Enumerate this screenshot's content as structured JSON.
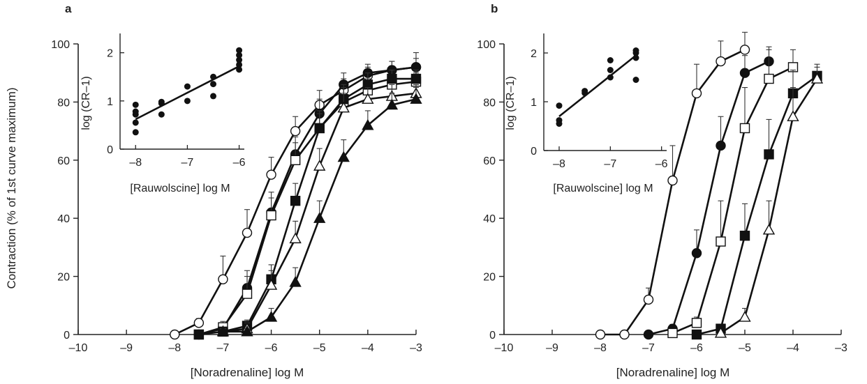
{
  "figure": {
    "y_label": "Contraction (% of 1st curve maximum)"
  },
  "chart_data": [
    {
      "panel_label": "a",
      "type": "line",
      "xlabel": "[Noradrenaline] log M",
      "xlim": [
        -10,
        -3
      ],
      "ylim": [
        0,
        100
      ],
      "x_ticks": [
        "–10",
        "–9",
        "–8",
        "–7",
        "–6",
        "–5",
        "–4",
        "–3"
      ],
      "y_ticks": [
        "0",
        "20",
        "40",
        "60",
        "80",
        "100"
      ],
      "series": [
        {
          "marker": "open-circle",
          "x": [
            -8,
            -7.5,
            -7,
            -6.5,
            -6,
            -5.5,
            -5,
            -4.5,
            -4,
            -3.5,
            -3
          ],
          "y": [
            0,
            4,
            19,
            35,
            55,
            70,
            79,
            84,
            89,
            91,
            92
          ],
          "err": [
            0,
            1.5,
            8,
            8,
            6,
            5,
            5,
            4,
            3,
            3,
            3
          ]
        },
        {
          "marker": "filled-circle",
          "x": [
            -7.5,
            -7,
            -6.5,
            -6,
            -5.5,
            -5,
            -4.5,
            -4,
            -3.5,
            -3
          ],
          "y": [
            0,
            2,
            16,
            42,
            62,
            76,
            86,
            90,
            91,
            92
          ],
          "err": [
            0,
            2,
            6,
            7,
            6,
            5,
            4,
            3,
            3,
            5
          ]
        },
        {
          "marker": "open-square",
          "x": [
            -7.5,
            -7,
            -6.5,
            -6,
            -5.5,
            -5,
            -4.5,
            -4,
            -3.5,
            -3
          ],
          "y": [
            0,
            2.5,
            14,
            41,
            60,
            71,
            80,
            84,
            86,
            87
          ],
          "err": [
            0,
            2,
            6,
            6,
            6,
            5,
            5,
            4,
            3,
            3
          ]
        },
        {
          "marker": "filled-square",
          "x": [
            -7.5,
            -7,
            -6.5,
            -6,
            -5.5,
            -5,
            -4.5,
            -4,
            -3.5,
            -3
          ],
          "y": [
            0,
            1,
            3,
            19,
            46,
            71,
            81,
            86,
            88,
            88
          ],
          "err": [
            0,
            1,
            2,
            5,
            6,
            6,
            5,
            4,
            3,
            3
          ]
        },
        {
          "marker": "open-triangle",
          "x": [
            -7,
            -6.5,
            -6,
            -5.5,
            -5,
            -4.5,
            -4,
            -3.5,
            -3
          ],
          "y": [
            1,
            2,
            17,
            33,
            58,
            78,
            81,
            82,
            83
          ],
          "err": [
            1,
            2,
            5,
            6,
            6,
            5,
            4,
            4,
            3
          ]
        },
        {
          "marker": "filled-triangle",
          "x": [
            -7,
            -6.5,
            -6,
            -5.5,
            -5,
            -4.5,
            -4,
            -3.5,
            -3
          ],
          "y": [
            1,
            1,
            6,
            18,
            40,
            61,
            72,
            79,
            81
          ],
          "err": [
            1,
            1,
            3,
            5,
            6,
            6,
            5,
            4,
            4
          ]
        }
      ],
      "inset": {
        "type": "scatter",
        "xlabel": "[Rauwolscine] log M",
        "ylabel": "log (CR–1)",
        "xlim": [
          -8.3,
          -5.9
        ],
        "ylim": [
          0,
          2.4
        ],
        "x_ticks": [
          "–8",
          "–7",
          "–6"
        ],
        "y_ticks": [
          "0",
          "1",
          "2"
        ],
        "points": [
          [
            -8,
            0.35
          ],
          [
            -8,
            0.55
          ],
          [
            -8,
            0.72
          ],
          [
            -8,
            0.78
          ],
          [
            -8,
            0.92
          ],
          [
            -7.5,
            0.72
          ],
          [
            -7.5,
            0.95
          ],
          [
            -7.5,
            0.98
          ],
          [
            -7,
            1.0
          ],
          [
            -7,
            1.3
          ],
          [
            -6.5,
            1.1
          ],
          [
            -6.5,
            1.35
          ],
          [
            -6.5,
            1.5
          ],
          [
            -6,
            1.65
          ],
          [
            -6,
            1.75
          ],
          [
            -6,
            1.85
          ],
          [
            -6,
            1.95
          ],
          [
            -6,
            2.05
          ]
        ],
        "fit": [
          [
            -8,
            0.62
          ],
          [
            -6,
            1.72
          ]
        ]
      }
    },
    {
      "panel_label": "b",
      "type": "line",
      "xlabel": "[Noradrenaline] log M",
      "xlim": [
        -10,
        -3
      ],
      "ylim": [
        0,
        100
      ],
      "x_ticks": [
        "–10",
        "–9",
        "–8",
        "–7",
        "–6",
        "–5",
        "–4",
        "–3"
      ],
      "y_ticks": [
        "0",
        "20",
        "40",
        "60",
        "80",
        "100"
      ],
      "series": [
        {
          "marker": "open-circle",
          "x": [
            -8,
            -7.5,
            -7,
            -6.5,
            -6,
            -5.5,
            -5
          ],
          "y": [
            0,
            0,
            12,
            53,
            83,
            94,
            98
          ],
          "err": [
            0,
            0,
            4,
            12,
            10,
            7,
            6
          ]
        },
        {
          "marker": "filled-circle",
          "x": [
            -7,
            -6.5,
            -6,
            -5.5,
            -5,
            -4.5
          ],
          "y": [
            0,
            2,
            28,
            65,
            90,
            94
          ],
          "err": [
            0,
            1.5,
            8,
            10,
            6,
            5
          ]
        },
        {
          "marker": "open-square",
          "x": [
            -6.5,
            -6,
            -5.5,
            -5,
            -4.5,
            -4
          ],
          "y": [
            0.5,
            4,
            32,
            71,
            88,
            92
          ],
          "err": [
            0,
            2,
            14,
            14,
            10,
            6
          ]
        },
        {
          "marker": "filled-square",
          "x": [
            -6,
            -5.5,
            -5,
            -4.5,
            -4,
            -3.5
          ],
          "y": [
            0,
            2,
            34,
            62,
            83,
            89
          ],
          "err": [
            0,
            1,
            11,
            12,
            8,
            4
          ]
        },
        {
          "marker": "open-triangle",
          "x": [
            -5.5,
            -5,
            -4.5,
            -4,
            -3.5
          ],
          "y": [
            0.5,
            6,
            36,
            75,
            88
          ],
          "err": [
            0,
            3,
            10,
            10,
            4
          ]
        }
      ],
      "inset": {
        "type": "scatter",
        "xlabel": "[Rauwolscine] log M",
        "ylabel": "log (CR–1)",
        "xlim": [
          -8.3,
          -5.9
        ],
        "ylim": [
          0,
          2.4
        ],
        "x_ticks": [
          "–8",
          "–7",
          "–6"
        ],
        "y_ticks": [
          "0",
          "1",
          "2"
        ],
        "points": [
          [
            -8,
            0.55
          ],
          [
            -8,
            0.62
          ],
          [
            -8,
            0.92
          ],
          [
            -7.5,
            1.18
          ],
          [
            -7.5,
            1.22
          ],
          [
            -7,
            1.5
          ],
          [
            -7,
            1.65
          ],
          [
            -7,
            1.85
          ],
          [
            -6.5,
            1.45
          ],
          [
            -6.5,
            1.9
          ],
          [
            -6.5,
            2.0
          ],
          [
            -6.5,
            2.05
          ]
        ],
        "fit": [
          [
            -8,
            0.7
          ],
          [
            -6.5,
            1.95
          ]
        ]
      }
    }
  ]
}
